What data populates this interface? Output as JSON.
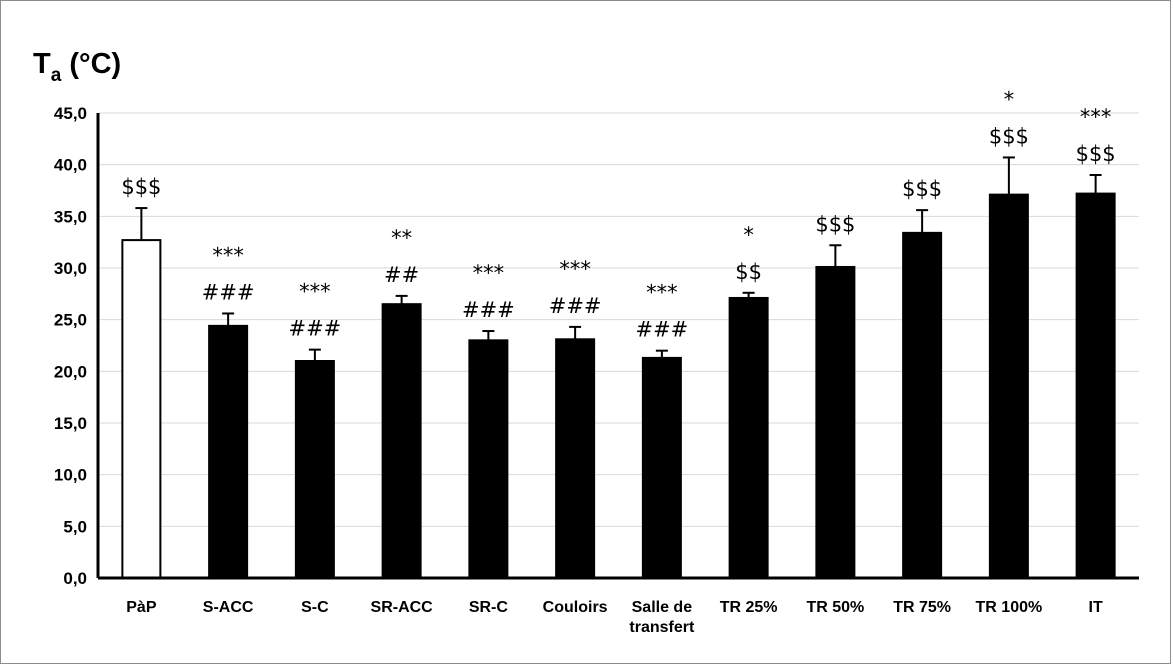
{
  "chart_data": {
    "type": "bar",
    "ylabel_main": "T",
    "ylabel_sub": "a",
    "ylabel_unit": " (°C)",
    "ylim": [
      0,
      45
    ],
    "yticks": [
      "0,0",
      "5,0",
      "10,0",
      "15,0",
      "20,0",
      "25,0",
      "30,0",
      "35,0",
      "40,0",
      "45,0"
    ],
    "grid": true,
    "categories": [
      [
        "PàP"
      ],
      [
        "S-ACC"
      ],
      [
        "S-C"
      ],
      [
        "SR-ACC"
      ],
      [
        "SR-C"
      ],
      [
        "Couloirs"
      ],
      [
        "Salle de",
        "transfert"
      ],
      [
        "TR 25%"
      ],
      [
        "TR 50%"
      ],
      [
        "TR 75%"
      ],
      [
        "TR 100%"
      ],
      [
        "IT"
      ]
    ],
    "values": [
      32.7,
      24.4,
      21.0,
      26.5,
      23.0,
      23.1,
      21.3,
      27.1,
      30.1,
      33.4,
      37.1,
      37.2
    ],
    "errors": [
      3.1,
      1.2,
      1.1,
      0.8,
      0.9,
      1.2,
      0.7,
      0.5,
      2.1,
      2.2,
      3.6,
      1.8
    ],
    "fills": [
      "#ffffff",
      "#000000",
      "#000000",
      "#000000",
      "#000000",
      "#000000",
      "#000000",
      "#000000",
      "#000000",
      "#000000",
      "#000000",
      "#000000"
    ],
    "annotations": [
      [
        "$$$"
      ],
      [
        "***",
        "###"
      ],
      [
        "***",
        "###"
      ],
      [
        "**",
        "##"
      ],
      [
        "***",
        "###"
      ],
      [
        "***",
        "###"
      ],
      [
        "***",
        "###"
      ],
      [
        "*",
        "$$"
      ],
      [
        "$$$"
      ],
      [
        "$$$"
      ],
      [
        "*",
        "$$$"
      ],
      [
        "***",
        "$$$"
      ]
    ]
  }
}
